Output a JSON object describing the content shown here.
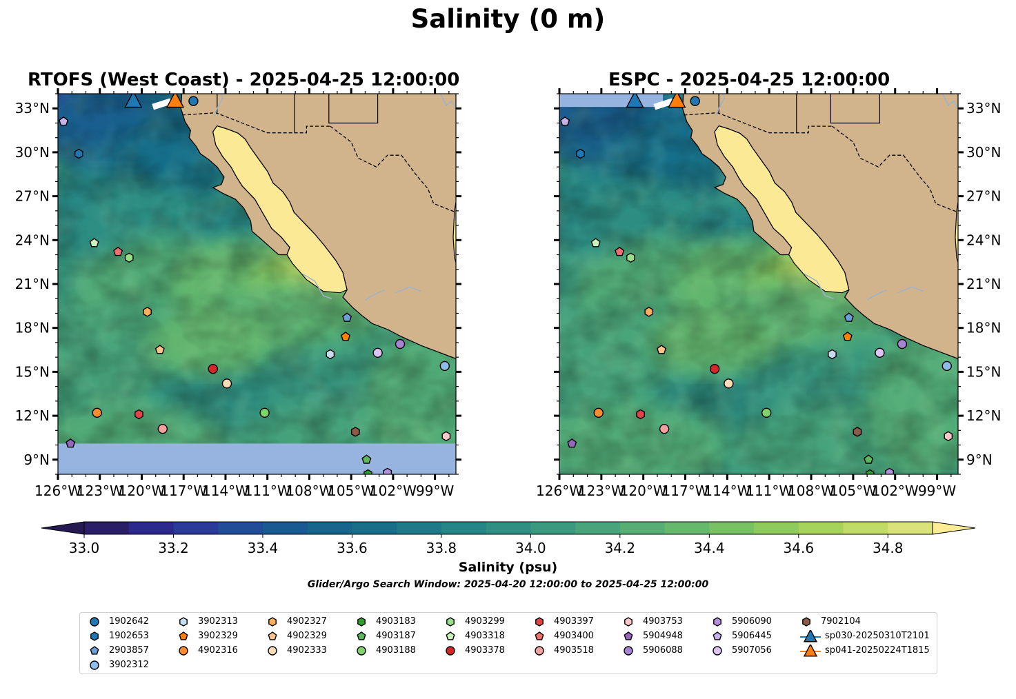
{
  "title": "Salinity (0 m)",
  "panels": [
    {
      "title": "RTOFS (West Coast) - 2025-04-25 12:00:00",
      "id": "rtofs"
    },
    {
      "title": "ESPC - 2025-04-25 12:00:00",
      "id": "espc"
    }
  ],
  "map_extent": {
    "lon": [
      -126,
      -97.5
    ],
    "lat": [
      8,
      34
    ]
  },
  "lon_ticks": [
    -126,
    -123,
    -120,
    -117,
    -114,
    -111,
    -108,
    -105,
    -102,
    -99
  ],
  "lon_tick_labels": [
    "126°W",
    "123°W",
    "120°W",
    "117°W",
    "114°W",
    "111°W",
    "108°W",
    "105°W",
    "102°W",
    "99°W"
  ],
  "lat_ticks": [
    9,
    12,
    15,
    18,
    21,
    24,
    27,
    30,
    33
  ],
  "lat_tick_labels": [
    "9°N",
    "12°N",
    "15°N",
    "18°N",
    "21°N",
    "24°N",
    "27°N",
    "30°N",
    "33°N"
  ],
  "colorbar": {
    "label": "Salinity (psu)",
    "min": 33.0,
    "max": 34.9,
    "step": 0.1,
    "ticks": [
      "33.0",
      "33.2",
      "33.4",
      "33.6",
      "33.8",
      "34.0",
      "34.2",
      "34.4",
      "34.6",
      "34.8"
    ],
    "colors": [
      "#2a1f66",
      "#2b2a8c",
      "#293a98",
      "#204c98",
      "#1a5a92",
      "#17648d",
      "#196f8a",
      "#1f7a88",
      "#268586",
      "#2f8f83",
      "#3a997f",
      "#48a47a",
      "#56ae74",
      "#66b86d",
      "#79c264",
      "#8ecb5c",
      "#a6d45a",
      "#c0dc66",
      "#d9e37a"
    ],
    "extend_low_color": "#261a52",
    "extend_high_color": "#fdec94"
  },
  "search_window": "Glider/Argo Search Window: 2025-04-20 12:00:00 to 2025-04-25 12:00:00",
  "colors": {
    "land": "#d2b48c",
    "gulf": "#fbe995",
    "nodata": "#97b4e0",
    "river": "#9db3cc"
  },
  "floats": [
    {
      "id": "1902642",
      "lon": -116.3,
      "lat": 33.5,
      "shape": "circle",
      "color": "#1f77b4"
    },
    {
      "id": "1902653",
      "lon": -124.5,
      "lat": 29.9,
      "shape": "hexagon",
      "color": "#1f77b4"
    },
    {
      "id": "2903857",
      "lon": -105.3,
      "lat": 18.7,
      "shape": "pentagon",
      "color": "#6a9fd8"
    },
    {
      "id": "3902312",
      "lon": -98.3,
      "lat": 15.4,
      "shape": "circle",
      "color": "#8fbde8"
    },
    {
      "id": "3902313",
      "lon": -106.5,
      "lat": 16.2,
      "shape": "hexagon",
      "color": "#c6dcf1"
    },
    {
      "id": "3902329",
      "lon": -105.4,
      "lat": 17.4,
      "shape": "pentagon",
      "color": "#ff7f0e"
    },
    {
      "id": "4902316",
      "lon": -123.2,
      "lat": 12.2,
      "shape": "circle",
      "color": "#ff8c2a"
    },
    {
      "id": "4902327",
      "lon": -119.6,
      "lat": 19.1,
      "shape": "hexagon",
      "color": "#ffae5c"
    },
    {
      "id": "4902329",
      "lon": -118.7,
      "lat": 16.5,
      "shape": "pentagon",
      "color": "#ffc48e"
    },
    {
      "id": "4902333",
      "lon": -113.9,
      "lat": 14.2,
      "shape": "circle",
      "color": "#ffdcb8"
    },
    {
      "id": "4903183",
      "lon": -103.8,
      "lat": 8.0,
      "shape": "hexagon",
      "color": "#2ca02c"
    },
    {
      "id": "4903187",
      "lon": -103.9,
      "lat": 9.0,
      "shape": "pentagon",
      "color": "#5cb85c"
    },
    {
      "id": "4903188",
      "lon": -111.2,
      "lat": 12.2,
      "shape": "circle",
      "color": "#7fd36b"
    },
    {
      "id": "4903299",
      "lon": -120.9,
      "lat": 22.8,
      "shape": "hexagon",
      "color": "#98df8a"
    },
    {
      "id": "4903318",
      "lon": -123.4,
      "lat": 23.8,
      "shape": "pentagon",
      "color": "#c9f2bd"
    },
    {
      "id": "4903378",
      "lon": -114.9,
      "lat": 15.2,
      "shape": "circle",
      "color": "#d62728"
    },
    {
      "id": "4903397",
      "lon": -120.2,
      "lat": 12.1,
      "shape": "hexagon",
      "color": "#e04444"
    },
    {
      "id": "4903400",
      "lon": -121.7,
      "lat": 23.2,
      "shape": "pentagon",
      "color": "#f07070"
    },
    {
      "id": "4903518",
      "lon": -118.5,
      "lat": 11.1,
      "shape": "circle",
      "color": "#f2a0a0"
    },
    {
      "id": "4903753",
      "lon": -98.2,
      "lat": 10.6,
      "shape": "hexagon",
      "color": "#f8c8c8"
    },
    {
      "id": "5904948",
      "lon": -125.1,
      "lat": 10.1,
      "shape": "pentagon",
      "color": "#9467bd"
    },
    {
      "id": "5906088",
      "lon": -101.5,
      "lat": 16.9,
      "shape": "circle",
      "color": "#a783d1"
    },
    {
      "id": "5906090",
      "lon": -102.4,
      "lat": 8.1,
      "shape": "hexagon",
      "color": "#b38fe0"
    },
    {
      "id": "5906445",
      "lon": -125.6,
      "lat": 32.1,
      "shape": "pentagon",
      "color": "#c9b3ea"
    },
    {
      "id": "5907056",
      "lon": -103.1,
      "lat": 16.3,
      "shape": "circle",
      "color": "#dcc4f5"
    },
    {
      "id": "7902104",
      "lon": -104.7,
      "lat": 10.9,
      "shape": "hexagon",
      "color": "#8c5a48"
    }
  ],
  "gliders": [
    {
      "id": "sp030-20250310T2101",
      "lon": -120.6,
      "lat": 33.5,
      "color": "#1f77b4"
    },
    {
      "id": "sp041-20250224T1815",
      "lon": -117.6,
      "lat": 33.5,
      "color": "#ff7f0e"
    }
  ],
  "legend": [
    {
      "label": "1902642",
      "shape": "circle",
      "color": "#1f77b4"
    },
    {
      "label": "1902653",
      "shape": "hexagon",
      "color": "#1f77b4"
    },
    {
      "label": "2903857",
      "shape": "pentagon",
      "color": "#6a9fd8"
    },
    {
      "label": "3902312",
      "shape": "circle",
      "color": "#8fbde8"
    },
    {
      "label": "3902313",
      "shape": "hexagon",
      "color": "#c6dcf1"
    },
    {
      "label": "3902329",
      "shape": "pentagon",
      "color": "#ff7f0e"
    },
    {
      "label": "4902316",
      "shape": "circle",
      "color": "#ff8c2a"
    },
    {
      "label": "4902327",
      "shape": "hexagon",
      "color": "#ffae5c"
    },
    {
      "label": "4902329",
      "shape": "pentagon",
      "color": "#ffc48e"
    },
    {
      "label": "4902333",
      "shape": "circle",
      "color": "#ffdcb8"
    },
    {
      "label": "4903183",
      "shape": "hexagon",
      "color": "#2ca02c"
    },
    {
      "label": "4903187",
      "shape": "pentagon",
      "color": "#5cb85c"
    },
    {
      "label": "4903188",
      "shape": "circle",
      "color": "#7fd36b"
    },
    {
      "label": "4903299",
      "shape": "hexagon",
      "color": "#98df8a"
    },
    {
      "label": "4903318",
      "shape": "pentagon",
      "color": "#c9f2bd"
    },
    {
      "label": "4903378",
      "shape": "circle",
      "color": "#d62728"
    },
    {
      "label": "4903397",
      "shape": "hexagon",
      "color": "#e04444"
    },
    {
      "label": "4903400",
      "shape": "pentagon",
      "color": "#f07070"
    },
    {
      "label": "4903518",
      "shape": "circle",
      "color": "#f2a0a0"
    },
    {
      "label": "4903753",
      "shape": "hexagon",
      "color": "#f8c8c8"
    },
    {
      "label": "5904948",
      "shape": "pentagon",
      "color": "#9467bd"
    },
    {
      "label": "5906088",
      "shape": "circle",
      "color": "#a783d1"
    },
    {
      "label": "5906090",
      "shape": "hexagon",
      "color": "#b38fe0"
    },
    {
      "label": "5906445",
      "shape": "pentagon",
      "color": "#c9b3ea"
    },
    {
      "label": "5907056",
      "shape": "circle",
      "color": "#dcc4f5"
    },
    {
      "label": "7902104",
      "shape": "hexagon",
      "color": "#8c5a48"
    },
    {
      "label": "sp030-20250310T2101",
      "shape": "triangle-line",
      "color": "#1f77b4"
    },
    {
      "label": "sp041-20250224T1815",
      "shape": "triangle-line",
      "color": "#ff7f0e"
    }
  ]
}
